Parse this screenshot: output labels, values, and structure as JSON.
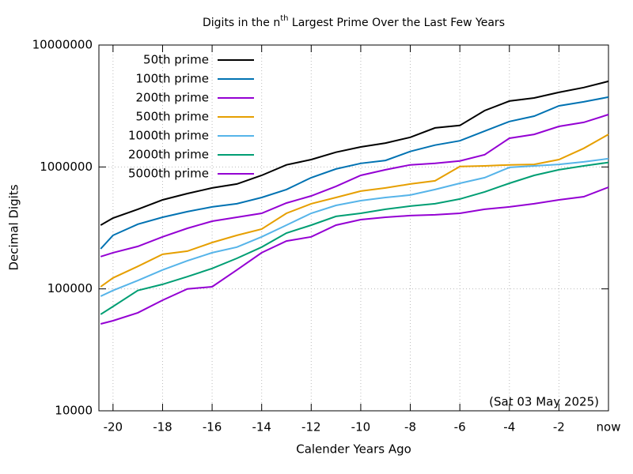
{
  "chart_data": {
    "type": "line",
    "title": [
      "Digits in the n",
      "th",
      " Largest Prime Over the Last Few Years"
    ],
    "xlabel": "Calender Years Ago",
    "ylabel": "Decimal Digits",
    "annotation": "(Sat 03 May 2025)",
    "log_y": true,
    "grid": true,
    "legend": "top-left",
    "xlim": [
      -20.57,
      0
    ],
    "ylim": [
      10000,
      10000000
    ],
    "xticks": [
      -20,
      -18,
      -16,
      -14,
      -12,
      -10,
      -8,
      -6,
      -4,
      -2,
      {
        "value": 0,
        "label": "now"
      }
    ],
    "yticks": [
      10000,
      100000,
      1000000,
      10000000
    ],
    "x": [
      -20.5,
      -20,
      -19,
      -18,
      -17,
      -16,
      -15,
      -14,
      -13,
      -12,
      -11,
      -10,
      -9,
      -8,
      -7,
      -6,
      -5,
      -4,
      -3,
      -2,
      -1,
      0
    ],
    "series": [
      {
        "name": "50th prime",
        "color": "#000000",
        "values": [
          333000,
          381000,
          450000,
          537000,
          605000,
          673000,
          725000,
          853000,
          1040000,
          1150000,
          1320000,
          1460000,
          1570000,
          1750000,
          2090000,
          2190000,
          2900000,
          3470000,
          3680000,
          4090000,
          4480000,
          5040000
        ]
      },
      {
        "name": "100th prime",
        "color": "#0072b2",
        "values": [
          213000,
          275000,
          339000,
          387000,
          430000,
          470000,
          499000,
          562000,
          653000,
          817000,
          962000,
          1070000,
          1130000,
          1340000,
          1510000,
          1640000,
          1970000,
          2360000,
          2610000,
          3170000,
          3420000,
          3740000
        ]
      },
      {
        "name": "200th prime",
        "color": "#9400d3",
        "values": [
          184000,
          198000,
          223000,
          267000,
          314000,
          359000,
          387000,
          417000,
          506000,
          579000,
          693000,
          853000,
          948000,
          1040000,
          1070000,
          1120000,
          1260000,
          1720000,
          1850000,
          2150000,
          2320000,
          2690000
        ]
      },
      {
        "name": "500th prime",
        "color": "#e69f00",
        "values": [
          104000,
          123000,
          153000,
          192000,
          204000,
          240000,
          275000,
          309000,
          417000,
          499000,
          562000,
          634000,
          673000,
          725000,
          769000,
          1010000,
          1020000,
          1040000,
          1050000,
          1150000,
          1420000,
          1850000
        ]
      },
      {
        "name": "1000th prime",
        "color": "#56b4e9",
        "values": [
          87000,
          97000,
          117000,
          143000,
          170000,
          198000,
          220000,
          267000,
          333000,
          417000,
          484000,
          529000,
          562000,
          588000,
          653000,
          735000,
          817000,
          991000,
          1020000,
          1050000,
          1100000,
          1170000
        ]
      },
      {
        "name": "2000th prime",
        "color": "#009e73",
        "values": [
          61800,
          71700,
          97000,
          109000,
          126000,
          147000,
          178000,
          220000,
          287000,
          333000,
          393000,
          417000,
          450000,
          477000,
          499000,
          546000,
          624000,
          735000,
          853000,
          948000,
          1020000,
          1090000
        ]
      },
      {
        "name": "5000th prime",
        "color": "#9400d3",
        "values": [
          51600,
          54800,
          63700,
          80800,
          100000,
          104000,
          143000,
          198000,
          247000,
          267000,
          333000,
          370000,
          387000,
          399000,
          405000,
          417000,
          450000,
          470000,
          499000,
          537000,
          570000,
          682000
        ]
      }
    ]
  }
}
